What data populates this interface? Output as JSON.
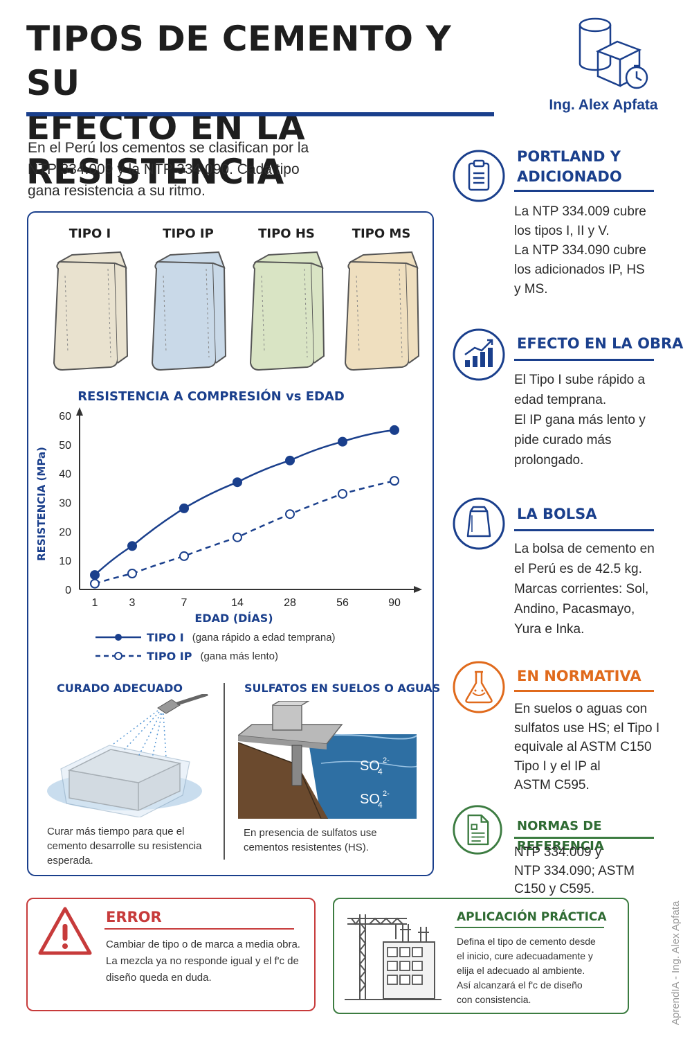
{
  "header": {
    "title_line1": "TIPOS DE CEMENTO Y SU",
    "title_line2": "EFECTO EN LA RESISTENCIA",
    "author": "Ing. Alex Apfata"
  },
  "intro": {
    "line1": "En el Perú los cementos se clasifican por la",
    "line2": "NTP 334.009 y la NTP 334.090. Cada tipo",
    "line3": "gana resistencia a su ritmo."
  },
  "bags": [
    {
      "label": "TIPO I",
      "color": "#e9e2cf"
    },
    {
      "label": "TIPO IP",
      "color": "#c9d9e8"
    },
    {
      "label": "TIPO HS",
      "color": "#d9e4c4"
    },
    {
      "label": "TIPO MS",
      "color": "#efdfbf"
    }
  ],
  "chart_data": {
    "type": "line",
    "title": "RESISTENCIA A COMPRESIÓN vs EDAD",
    "xlabel": "EDAD (DÍAS)",
    "ylabel": "RESISTENCIA (MPa)",
    "categories": [
      "1",
      "3",
      "7",
      "14",
      "28",
      "56",
      "90"
    ],
    "ylim": [
      0,
      60
    ],
    "yticks": [
      "0",
      "10",
      "20",
      "30",
      "40",
      "50",
      "60"
    ],
    "series": [
      {
        "name": "TIPO I",
        "note": "(gana rápido a edad temprana)",
        "style": "solid",
        "color": "#1a3f8c",
        "values": [
          5,
          15,
          28,
          37,
          44.5,
          51,
          55
        ]
      },
      {
        "name": "TIPO IP",
        "note": "(gana más lento)",
        "style": "dashed",
        "color": "#1a3f8c",
        "values": [
          2,
          5.5,
          11.5,
          18,
          26,
          33,
          37.5
        ]
      }
    ]
  },
  "curado": {
    "title": "CURADO ADECUADO",
    "text_line1": "Curar más tiempo para que el",
    "text_line2": "cemento desarrolle su resistencia",
    "text_line3": "esperada."
  },
  "sulfatos": {
    "title": "SULFATOS EN SUELOS O AGUAS",
    "label1": "SO",
    "label2": "SO",
    "subscript": "4",
    "superscript": "2-",
    "text_line1": "En presencia de sulfatos use",
    "text_line2": "cementos resistentes (HS)."
  },
  "sidebar": {
    "portland": {
      "title_line1": "PORTLAND Y",
      "title_line2": "ADICIONADO",
      "line1": "La NTP 334.009 cubre",
      "line2": "los tipos I, II y V.",
      "line3": "La NTP 334.090 cubre",
      "line4": "los adicionados IP, HS",
      "line5": "y MS."
    },
    "efecto": {
      "title": "EFECTO EN LA OBRA",
      "line1": "El Tipo I sube rápido a",
      "line2": "edad temprana.",
      "line3": "El IP gana más lento y",
      "line4": "pide curado más",
      "line5": "prolongado."
    },
    "bolsa": {
      "title": "LA BOLSA",
      "line1": "La bolsa de cemento en",
      "line2": "el Perú es de 42.5 kg.",
      "line3": "Marcas corrientes: Sol,",
      "line4": "Andino, Pacasmayo,",
      "line5": "Yura e Inka."
    },
    "normativa": {
      "title": "EN NORMATIVA",
      "line1": "En suelos o aguas con",
      "line2": "sulfatos use HS; el Tipo I",
      "line3": "equivale al ASTM C150",
      "line4": "Tipo I y el IP al",
      "line5": "ASTM C595."
    },
    "normas": {
      "title": "NORMAS DE REFERENCIA",
      "line1": "NTP 334.009 y",
      "line2": "NTP 334.090; ASTM",
      "line3": "C150 y C595."
    }
  },
  "error": {
    "title": "ERROR",
    "line1": "Cambiar de tipo o de marca a media obra.",
    "line2": "La mezcla ya no responde igual y el f'c de",
    "line3": "diseño queda en duda."
  },
  "aplicacion": {
    "title": "APLICACIÓN PRÁCTICA",
    "line1": "Defina el tipo de cemento desde",
    "line2": "el inicio, cure adecuadamente y",
    "line3": "elija el adecuado al ambiente.",
    "line4": "Así alcanzará el f'c de diseño",
    "line5": "con consistencia."
  },
  "watermark": "AprendIA - Ing. Alex Apfata",
  "colors": {
    "primary": "#1a3f8c",
    "orange": "#e06a1c",
    "green": "#3c7c41",
    "red": "#c73b3b"
  },
  "icons": [
    "logo-cylinder-cube-clock-icon",
    "clipboard-icon",
    "growth-chart-icon",
    "cement-bag-icon",
    "flask-icon",
    "document-icon",
    "warning-triangle-icon",
    "crane-building-icon"
  ]
}
